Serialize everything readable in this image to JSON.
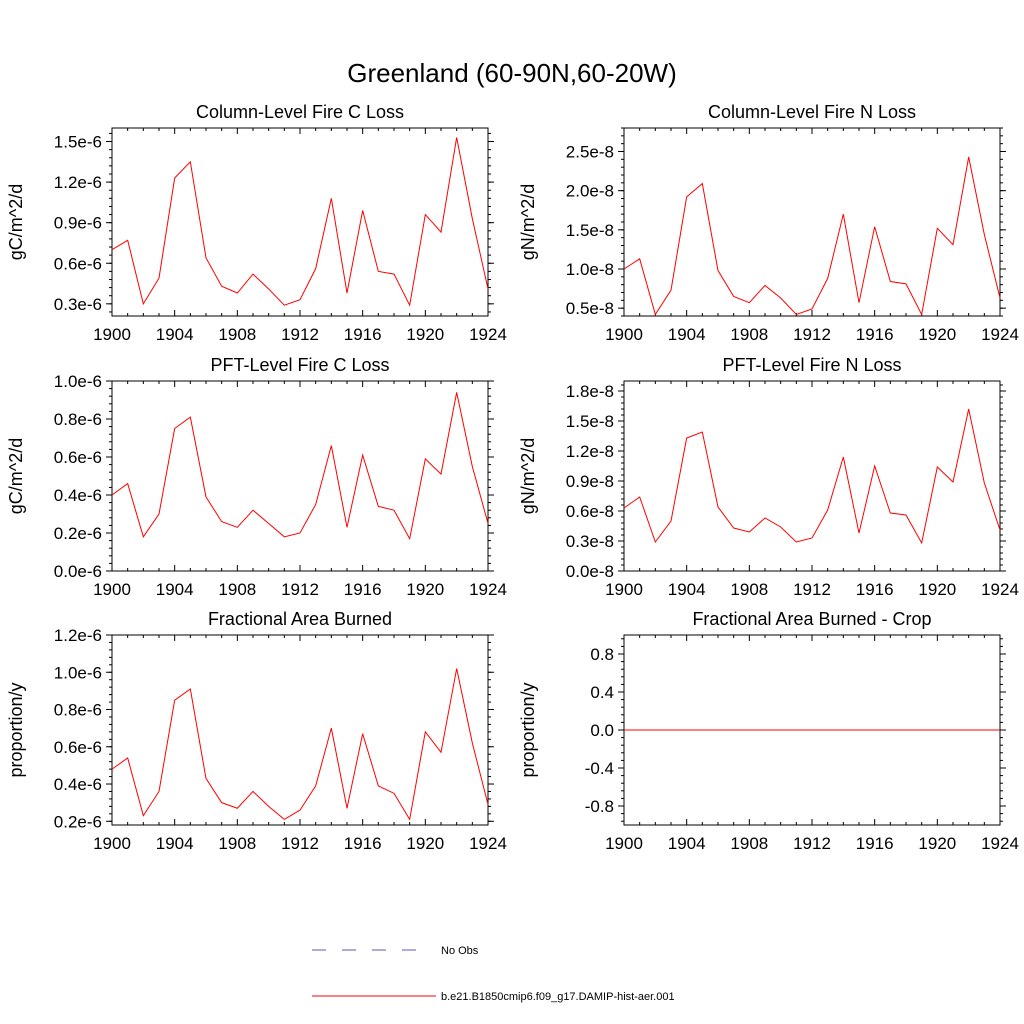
{
  "figure": {
    "title": "Greenland (60-90N,60-20W)"
  },
  "colors": {
    "model_line": "#ff0000",
    "obs_line": "#5a5ab4",
    "axes": "#000000"
  },
  "legend": {
    "obs_label": "No Obs",
    "model_label": "b.e21.B1850cmip6.f09_g17.DAMIP-hist-aer.001"
  },
  "chart_data": [
    {
      "type": "line",
      "title": "Column-Level Fire C Loss",
      "ylabel": "gC/m^2/d",
      "xlim": [
        1900,
        1924
      ],
      "ylim": [
        0.21,
        1.6
      ],
      "yticks": [
        0.3,
        0.6,
        0.9,
        1.2,
        1.5
      ],
      "ytick_labels": [
        "0.3e-6",
        "0.6e-6",
        "0.9e-6",
        "1.2e-6",
        "1.5e-6"
      ],
      "xticks": [
        1900,
        1904,
        1908,
        1912,
        1916,
        1920,
        1924
      ],
      "xtick_labels": [
        "1900",
        "1904",
        "1908",
        "1912",
        "1916",
        "1920",
        "1924"
      ],
      "unit_scale": "e-6",
      "series": [
        {
          "x": [
            1900,
            1901,
            1902,
            1903,
            1904,
            1905,
            1906,
            1907,
            1908,
            1909,
            1910,
            1911,
            1912,
            1913,
            1914,
            1915,
            1916,
            1917,
            1918,
            1919,
            1920,
            1921,
            1922,
            1923,
            1924
          ],
          "values": [
            0.7,
            0.77,
            0.3,
            0.49,
            1.23,
            1.35,
            0.64,
            0.43,
            0.38,
            0.52,
            0.41,
            0.29,
            0.33,
            0.56,
            1.08,
            0.38,
            0.99,
            0.54,
            0.52,
            0.29,
            0.96,
            0.83,
            1.53,
            0.93,
            0.41
          ]
        }
      ]
    },
    {
      "type": "line",
      "title": "Column-Level Fire N Loss",
      "ylabel": "gN/m^2/d",
      "xlim": [
        1900,
        1924
      ],
      "ylim": [
        0.4,
        2.8
      ],
      "yticks": [
        0.5,
        1.0,
        1.5,
        2.0,
        2.5
      ],
      "ytick_labels": [
        "0.5e-8",
        "1.0e-8",
        "1.5e-8",
        "2.0e-8",
        "2.5e-8"
      ],
      "xticks": [
        1900,
        1904,
        1908,
        1912,
        1916,
        1920,
        1924
      ],
      "xtick_labels": [
        "1900",
        "1904",
        "1908",
        "1912",
        "1916",
        "1920",
        "1924"
      ],
      "unit_scale": "e-8",
      "series": [
        {
          "x": [
            1900,
            1901,
            1902,
            1903,
            1904,
            1905,
            1906,
            1907,
            1908,
            1909,
            1910,
            1911,
            1912,
            1913,
            1914,
            1915,
            1916,
            1917,
            1918,
            1919,
            1920,
            1921,
            1922,
            1923,
            1924
          ],
          "values": [
            1.0,
            1.13,
            0.42,
            0.73,
            1.92,
            2.09,
            0.98,
            0.65,
            0.57,
            0.79,
            0.63,
            0.42,
            0.49,
            0.88,
            1.7,
            0.57,
            1.54,
            0.84,
            0.81,
            0.42,
            1.52,
            1.31,
            2.43,
            1.44,
            0.63
          ]
        }
      ]
    },
    {
      "type": "line",
      "title": "PFT-Level Fire C Loss",
      "ylabel": "gC/m^2/d",
      "xlim": [
        1900,
        1924
      ],
      "ylim": [
        0.0,
        1.0
      ],
      "yticks": [
        0.0,
        0.2,
        0.4,
        0.6,
        0.8,
        1.0
      ],
      "ytick_labels": [
        "0.0e-6",
        "0.2e-6",
        "0.4e-6",
        "0.6e-6",
        "0.8e-6",
        "1.0e-6"
      ],
      "xticks": [
        1900,
        1904,
        1908,
        1912,
        1916,
        1920,
        1924
      ],
      "xtick_labels": [
        "1900",
        "1904",
        "1908",
        "1912",
        "1916",
        "1920",
        "1924"
      ],
      "unit_scale": "e-6",
      "series": [
        {
          "x": [
            1900,
            1901,
            1902,
            1903,
            1904,
            1905,
            1906,
            1907,
            1908,
            1909,
            1910,
            1911,
            1912,
            1913,
            1914,
            1915,
            1916,
            1917,
            1918,
            1919,
            1920,
            1921,
            1922,
            1923,
            1924
          ],
          "values": [
            0.4,
            0.46,
            0.18,
            0.3,
            0.75,
            0.81,
            0.39,
            0.26,
            0.23,
            0.32,
            0.25,
            0.18,
            0.2,
            0.35,
            0.66,
            0.23,
            0.61,
            0.34,
            0.32,
            0.17,
            0.59,
            0.51,
            0.94,
            0.55,
            0.25
          ]
        }
      ]
    },
    {
      "type": "line",
      "title": "PFT-Level Fire N Loss",
      "ylabel": "gN/m^2/d",
      "xlim": [
        1900,
        1924
      ],
      "ylim": [
        0.0,
        1.9
      ],
      "yticks": [
        0.0,
        0.3,
        0.6,
        0.9,
        1.2,
        1.5,
        1.8
      ],
      "ytick_labels": [
        "0.0e-8",
        "0.3e-8",
        "0.6e-8",
        "0.9e-8",
        "1.2e-8",
        "1.5e-8",
        "1.8e-8"
      ],
      "xticks": [
        1900,
        1904,
        1908,
        1912,
        1916,
        1920,
        1924
      ],
      "xtick_labels": [
        "1900",
        "1904",
        "1908",
        "1912",
        "1916",
        "1920",
        "1924"
      ],
      "unit_scale": "e-8",
      "series": [
        {
          "x": [
            1900,
            1901,
            1902,
            1903,
            1904,
            1905,
            1906,
            1907,
            1908,
            1909,
            1910,
            1911,
            1912,
            1913,
            1914,
            1915,
            1916,
            1917,
            1918,
            1919,
            1920,
            1921,
            1922,
            1923,
            1924
          ],
          "values": [
            0.63,
            0.74,
            0.29,
            0.5,
            1.33,
            1.39,
            0.64,
            0.43,
            0.39,
            0.53,
            0.44,
            0.29,
            0.33,
            0.61,
            1.14,
            0.38,
            1.05,
            0.58,
            0.56,
            0.28,
            1.04,
            0.89,
            1.62,
            0.88,
            0.41
          ]
        }
      ]
    },
    {
      "type": "line",
      "title": "Fractional Area Burned",
      "ylabel": "proportion/y",
      "xlim": [
        1900,
        1924
      ],
      "ylim": [
        0.18,
        1.2
      ],
      "yticks": [
        0.2,
        0.4,
        0.6,
        0.8,
        1.0,
        1.2
      ],
      "ytick_labels": [
        "0.2e-6",
        "0.4e-6",
        "0.6e-6",
        "0.8e-6",
        "1.0e-6",
        "1.2e-6"
      ],
      "xticks": [
        1900,
        1904,
        1908,
        1912,
        1916,
        1920,
        1924
      ],
      "xtick_labels": [
        "1900",
        "1904",
        "1908",
        "1912",
        "1916",
        "1920",
        "1924"
      ],
      "unit_scale": "e-6",
      "series": [
        {
          "x": [
            1900,
            1901,
            1902,
            1903,
            1904,
            1905,
            1906,
            1907,
            1908,
            1909,
            1910,
            1911,
            1912,
            1913,
            1914,
            1915,
            1916,
            1917,
            1918,
            1919,
            1920,
            1921,
            1922,
            1923,
            1924
          ],
          "values": [
            0.48,
            0.54,
            0.23,
            0.36,
            0.85,
            0.91,
            0.43,
            0.3,
            0.27,
            0.36,
            0.28,
            0.21,
            0.26,
            0.39,
            0.7,
            0.27,
            0.67,
            0.39,
            0.35,
            0.21,
            0.68,
            0.57,
            1.02,
            0.62,
            0.29
          ]
        }
      ]
    },
    {
      "type": "line",
      "title": "Fractional Area Burned - Crop",
      "ylabel": "proportion/y",
      "xlim": [
        1900,
        1924
      ],
      "ylim": [
        -1.0,
        1.0
      ],
      "yticks": [
        -0.8,
        -0.4,
        0.0,
        0.4,
        0.8
      ],
      "ytick_labels": [
        "-0.8",
        "-0.4",
        "0.0",
        "0.4",
        "0.8"
      ],
      "xticks": [
        1900,
        1904,
        1908,
        1912,
        1916,
        1920,
        1924
      ],
      "xtick_labels": [
        "1900",
        "1904",
        "1908",
        "1912",
        "1916",
        "1920",
        "1924"
      ],
      "unit_scale": "",
      "series": [
        {
          "x": [
            1900,
            1924
          ],
          "values": [
            0.0,
            0.0
          ]
        }
      ]
    }
  ]
}
